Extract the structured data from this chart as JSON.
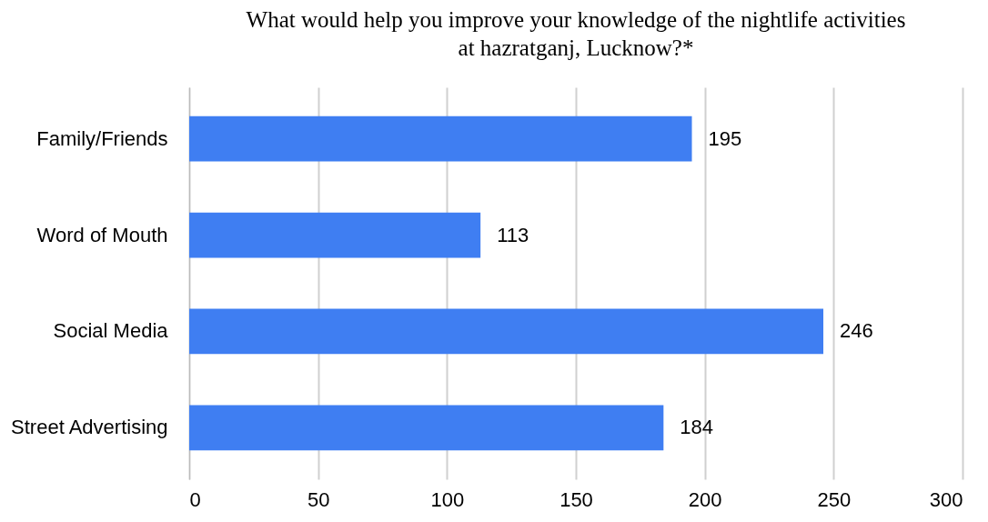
{
  "chart_data": {
    "type": "bar",
    "orientation": "horizontal",
    "title": "What would help you improve your knowledge of the nightlife activities at hazratganj, Lucknow?*",
    "categories": [
      "Family/Friends",
      "Word of Mouth",
      "Social Media",
      "Street Advertising"
    ],
    "values": [
      195,
      113,
      246,
      184
    ],
    "color": "#3f7ef2",
    "xlim": [
      0,
      300
    ],
    "xticks": [
      0,
      50,
      100,
      150,
      200,
      250,
      300
    ],
    "grid": "x",
    "data_labels": true
  }
}
